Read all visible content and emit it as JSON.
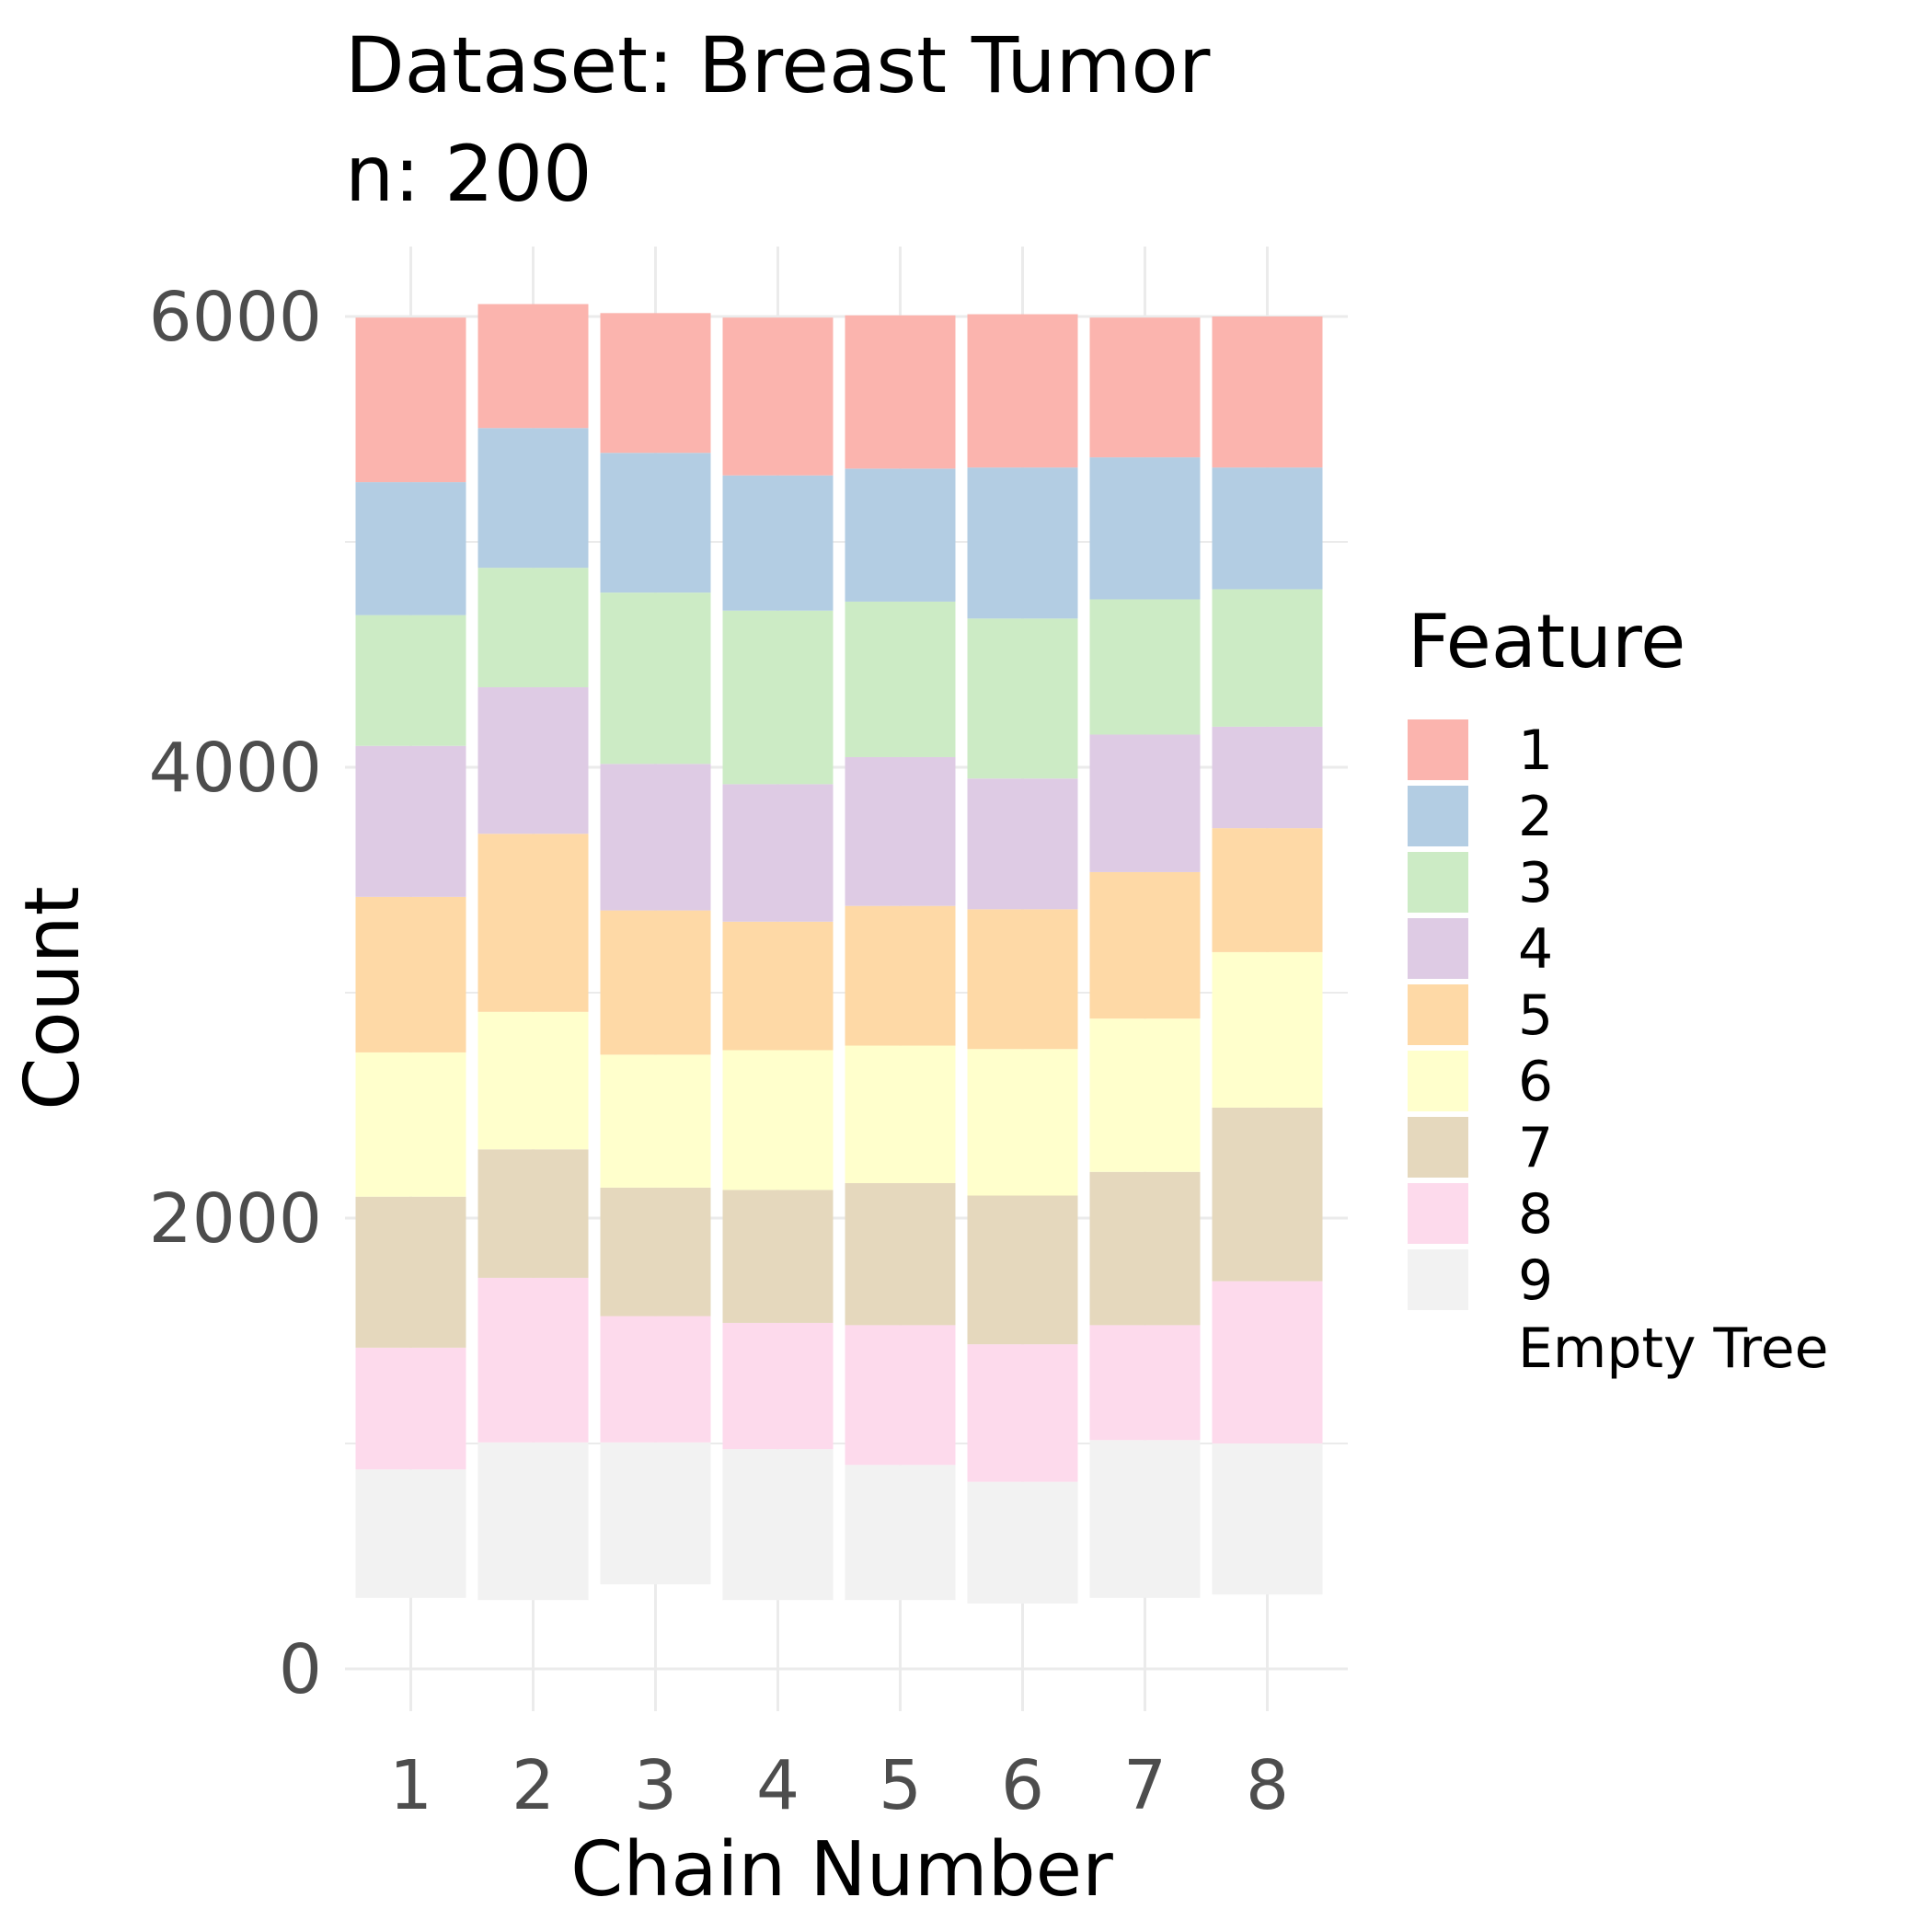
{
  "chart_data": {
    "type": "bar",
    "stacked": true,
    "title": "Dataset: Breast Tumor",
    "subtitle": "n: 200",
    "xlabel": "Chain Number",
    "ylabel": "Count",
    "categories": [
      "1",
      "2",
      "3",
      "4",
      "5",
      "6",
      "7",
      "8"
    ],
    "yticks": [
      "0",
      "2000",
      "4000",
      "6000"
    ],
    "ylim": [
      0,
      6000
    ],
    "grid": true,
    "legend": {
      "title": "Feature",
      "position": "right",
      "extra_label": "Empty Tree"
    },
    "series": [
      {
        "name": "9",
        "color": "#f2f2f2",
        "values": [
          570,
          700,
          630,
          670,
          600,
          540,
          700,
          670
        ]
      },
      {
        "name": "8",
        "color": "#fddaec",
        "values": [
          540,
          730,
          560,
          560,
          620,
          610,
          510,
          720
        ]
      },
      {
        "name": "7",
        "color": "#e5d8bd",
        "values": [
          670,
          570,
          570,
          590,
          630,
          660,
          680,
          770
        ]
      },
      {
        "name": "6",
        "color": "#ffffcc",
        "values": [
          640,
          610,
          590,
          620,
          610,
          650,
          680,
          690
        ]
      },
      {
        "name": "5",
        "color": "#fed9a6",
        "values": [
          690,
          790,
          640,
          570,
          620,
          620,
          650,
          550
        ]
      },
      {
        "name": "4",
        "color": "#decbe4",
        "values": [
          670,
          650,
          650,
          610,
          660,
          580,
          610,
          450
        ]
      },
      {
        "name": "3",
        "color": "#ccebc5",
        "values": [
          580,
          530,
          760,
          770,
          690,
          710,
          600,
          610
        ]
      },
      {
        "name": "2",
        "color": "#b3cde3",
        "values": [
          590,
          620,
          620,
          600,
          590,
          670,
          630,
          540
        ]
      },
      {
        "name": "1",
        "color": "#fbb4ae",
        "values": [
          730,
          550,
          620,
          700,
          680,
          680,
          620,
          670
        ]
      }
    ],
    "bases": [
      315,
      305,
      375,
      305,
      305,
      290,
      315,
      330
    ]
  }
}
